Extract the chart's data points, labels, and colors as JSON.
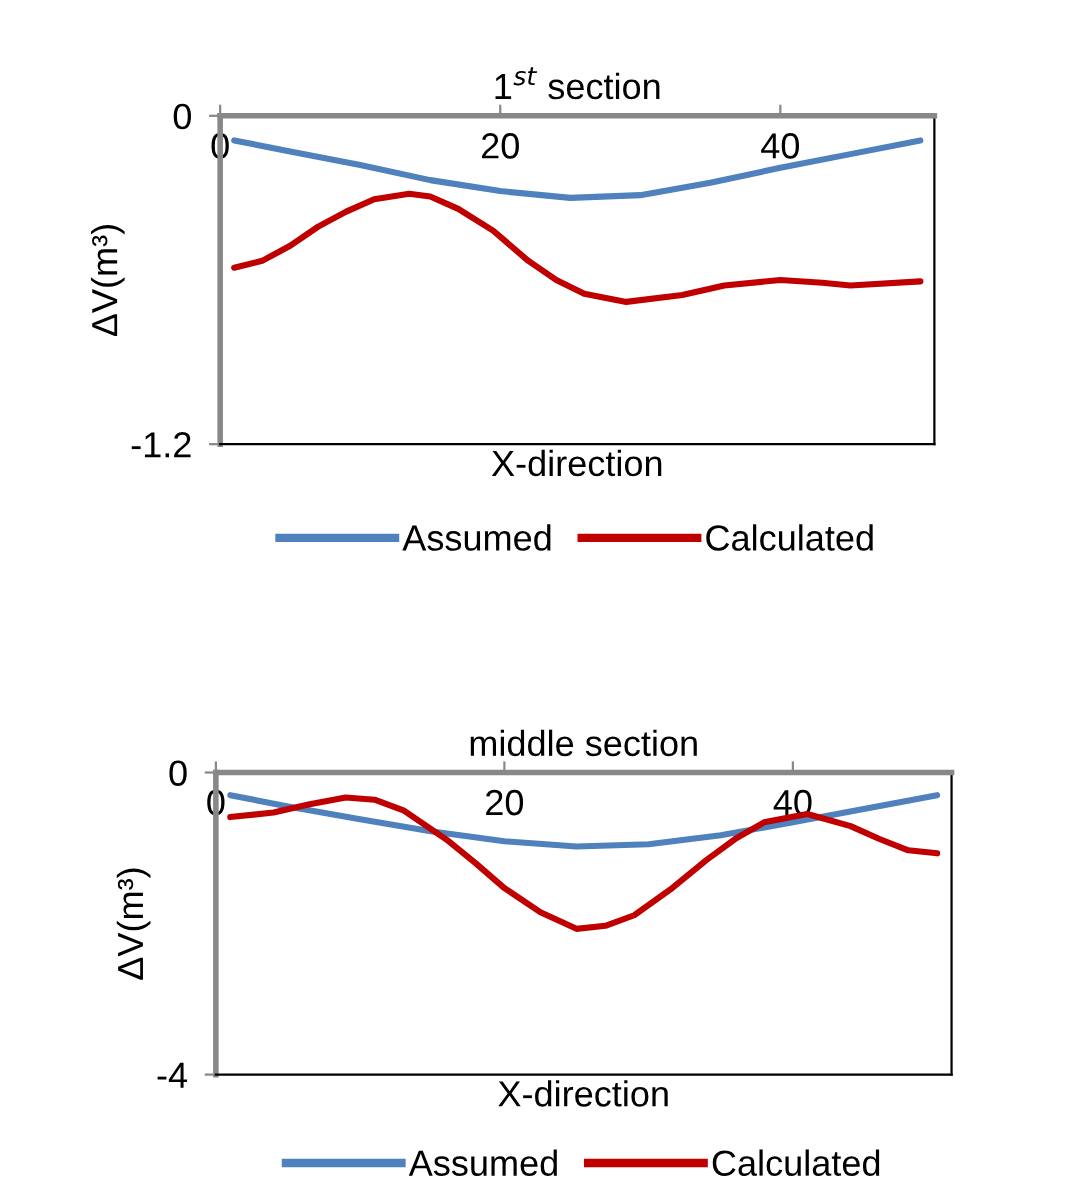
{
  "chart_data": [
    {
      "type": "line",
      "title": "1$^{st}$ section",
      "xlabel": "X-direction",
      "ylabel": "ΔV(m³)",
      "xlim": [
        0,
        51
      ],
      "xticks": [
        0,
        20,
        40
      ],
      "ylim": [
        -1.2,
        0
      ],
      "yticks": [
        0,
        -1.2
      ],
      "legend": "bottom",
      "grid": false,
      "marker": "none",
      "line_style": "solid",
      "series": [
        {
          "name": "Assumed",
          "color": "#4f81bd",
          "x": [
            1,
            5,
            10,
            15,
            20,
            25,
            30,
            35,
            40,
            45,
            50
          ],
          "values": [
            -0.09,
            -0.13,
            -0.18,
            -0.235,
            -0.275,
            -0.3,
            -0.29,
            -0.245,
            -0.19,
            -0.14,
            -0.09
          ]
        },
        {
          "name": "Calculated",
          "color": "#c00000",
          "x": [
            1,
            3,
            5,
            7,
            9,
            11,
            13.5,
            15,
            17,
            19.5,
            22,
            24,
            26,
            29,
            33,
            36,
            40,
            43,
            45,
            50
          ],
          "values": [
            -0.555,
            -0.53,
            -0.475,
            -0.405,
            -0.35,
            -0.305,
            -0.285,
            -0.295,
            -0.34,
            -0.42,
            -0.53,
            -0.6,
            -0.65,
            -0.68,
            -0.655,
            -0.62,
            -0.6,
            -0.61,
            -0.62,
            -0.605
          ]
        }
      ]
    },
    {
      "type": "line",
      "title": "middle section",
      "xlabel": "X-direction",
      "ylabel": "ΔV(m³)",
      "xlim": [
        0,
        51
      ],
      "xticks": [
        0,
        20,
        40
      ],
      "ylim": [
        -4,
        0
      ],
      "yticks": [
        0,
        -4
      ],
      "legend": "bottom",
      "grid": false,
      "marker": "none",
      "line_style": "solid",
      "series": [
        {
          "name": "Assumed",
          "color": "#4f81bd",
          "x": [
            1,
            5,
            10,
            15,
            20,
            25,
            30,
            35,
            40,
            45,
            50
          ],
          "values": [
            -0.3,
            -0.45,
            -0.62,
            -0.78,
            -0.91,
            -0.98,
            -0.95,
            -0.83,
            -0.66,
            -0.48,
            -0.3
          ]
        },
        {
          "name": "Calculated",
          "color": "#c00000",
          "x": [
            1,
            4,
            6.5,
            9,
            11,
            13,
            16,
            18,
            20,
            22.5,
            25,
            27,
            29,
            31.5,
            34,
            36,
            38,
            41,
            44,
            46,
            48,
            50
          ],
          "values": [
            -0.59,
            -0.53,
            -0.42,
            -0.33,
            -0.36,
            -0.5,
            -0.89,
            -1.2,
            -1.53,
            -1.85,
            -2.07,
            -2.03,
            -1.89,
            -1.55,
            -1.16,
            -0.88,
            -0.66,
            -0.55,
            -0.71,
            -0.88,
            -1.03,
            -1.07
          ]
        }
      ]
    }
  ]
}
